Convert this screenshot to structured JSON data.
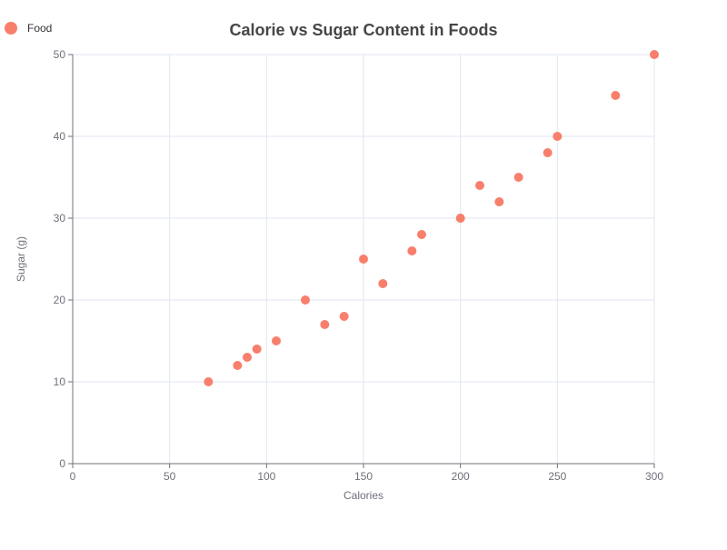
{
  "chart_data": {
    "type": "scatter",
    "title": "Calorie vs Sugar Content in Foods",
    "xlabel": "Calories",
    "ylabel": "Sugar (g)",
    "xlim": [
      0,
      300
    ],
    "ylim": [
      0,
      50
    ],
    "x_ticks": [
      0,
      50,
      100,
      150,
      200,
      250,
      300
    ],
    "y_ticks": [
      0,
      10,
      20,
      30,
      40,
      50
    ],
    "grid": true,
    "legend_position": "top-left",
    "series": [
      {
        "name": "Food",
        "color": "#f87f6c",
        "points": [
          {
            "x": 70,
            "y": 10
          },
          {
            "x": 85,
            "y": 12
          },
          {
            "x": 90,
            "y": 13
          },
          {
            "x": 95,
            "y": 14
          },
          {
            "x": 105,
            "y": 15
          },
          {
            "x": 120,
            "y": 20
          },
          {
            "x": 130,
            "y": 17
          },
          {
            "x": 140,
            "y": 18
          },
          {
            "x": 150,
            "y": 25
          },
          {
            "x": 160,
            "y": 22
          },
          {
            "x": 175,
            "y": 26
          },
          {
            "x": 180,
            "y": 28
          },
          {
            "x": 200,
            "y": 30
          },
          {
            "x": 210,
            "y": 34
          },
          {
            "x": 220,
            "y": 32
          },
          {
            "x": 230,
            "y": 35
          },
          {
            "x": 245,
            "y": 38
          },
          {
            "x": 250,
            "y": 40
          },
          {
            "x": 280,
            "y": 45
          },
          {
            "x": 300,
            "y": 50
          }
        ]
      }
    ]
  }
}
